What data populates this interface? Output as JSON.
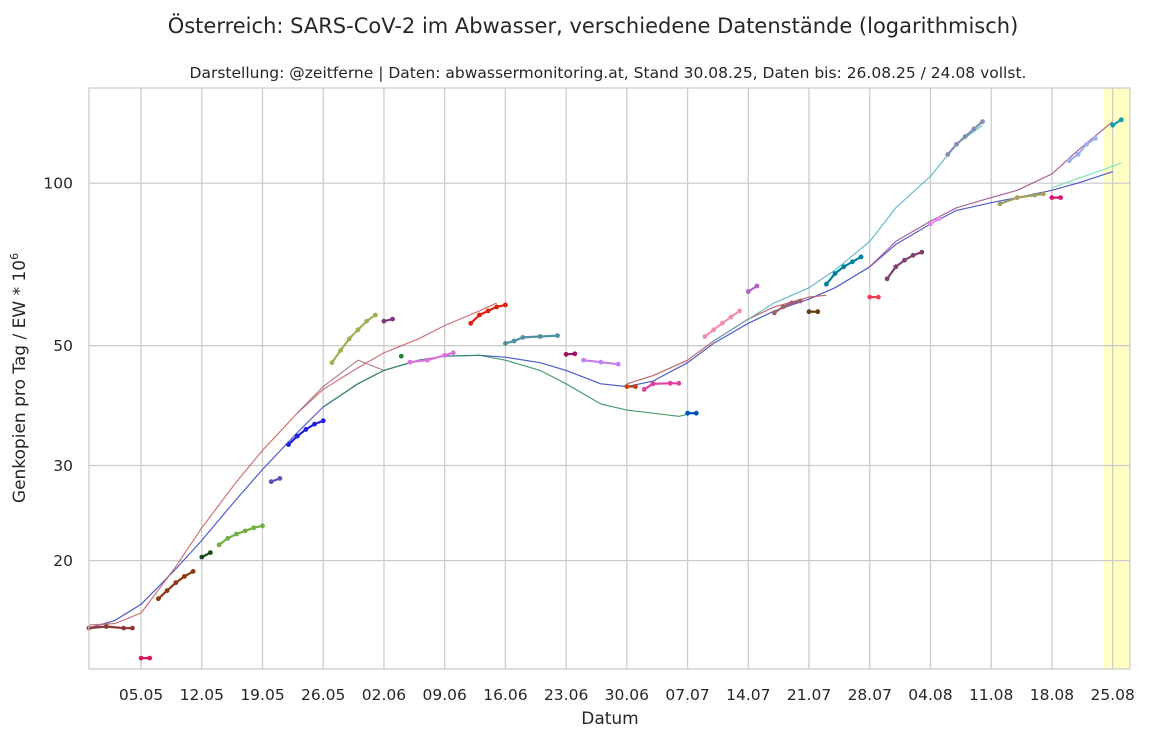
{
  "chart_data": {
    "type": "line",
    "title": "Österreich: SARS-CoV-2 im Abwasser, verschiedene Datenstände (logarithmisch)",
    "subtitle": "Darstellung: @zeitferne | Daten: abwassermonitoring.at, Stand 30.08.25, Daten bis: 26.08.25 / 24.08 vollst.",
    "xlabel": "Datum",
    "ylabel": "Genkopien pro Tag / EW * 10",
    "ylabel_sup": "6",
    "yscale": "log",
    "grid": true,
    "xlim": [
      "2025-04-29",
      "2025-08-27"
    ],
    "ylim": [
      12.6,
      150
    ],
    "x_ticks": [
      {
        "date": "2025-05-05",
        "label": "05.05"
      },
      {
        "date": "2025-05-12",
        "label": "12.05"
      },
      {
        "date": "2025-05-19",
        "label": "19.05"
      },
      {
        "date": "2025-05-26",
        "label": "26.05"
      },
      {
        "date": "2025-06-02",
        "label": "02.06"
      },
      {
        "date": "2025-06-09",
        "label": "09.06"
      },
      {
        "date": "2025-06-16",
        "label": "16.06"
      },
      {
        "date": "2025-06-23",
        "label": "23.06"
      },
      {
        "date": "2025-06-30",
        "label": "30.06"
      },
      {
        "date": "2025-07-07",
        "label": "07.07"
      },
      {
        "date": "2025-07-14",
        "label": "14.07"
      },
      {
        "date": "2025-07-21",
        "label": "21.07"
      },
      {
        "date": "2025-07-28",
        "label": "28.07"
      },
      {
        "date": "2025-08-04",
        "label": "04.08"
      },
      {
        "date": "2025-08-11",
        "label": "11.08"
      },
      {
        "date": "2025-08-18",
        "label": "18.08"
      },
      {
        "date": "2025-08-25",
        "label": "25.08"
      }
    ],
    "y_ticks": [
      {
        "value": 20,
        "label": "20"
      },
      {
        "value": 30,
        "label": "30"
      },
      {
        "value": 50,
        "label": "50"
      },
      {
        "value": 100,
        "label": "100"
      }
    ],
    "highlight_span": {
      "from": "2025-08-24",
      "to": "2025-08-27",
      "color": "#ffffc4"
    },
    "smoothed_curves": [
      {
        "color": "#3040c0",
        "points": [
          [
            "2025-04-29",
            15.0
          ],
          [
            "2025-05-02",
            15.5
          ],
          [
            "2025-05-05",
            16.6
          ],
          [
            "2025-05-09",
            19.3
          ],
          [
            "2025-05-12",
            21.8
          ],
          [
            "2025-05-16",
            26.0
          ],
          [
            "2025-05-19",
            29.5
          ],
          [
            "2025-05-23",
            34.5
          ],
          [
            "2025-05-26",
            38.5
          ],
          [
            "2025-05-30",
            42.5
          ],
          [
            "2025-06-02",
            45.0
          ],
          [
            "2025-06-06",
            47.0
          ],
          [
            "2025-06-09",
            47.8
          ],
          [
            "2025-06-13",
            48.0
          ],
          [
            "2025-06-16",
            47.6
          ],
          [
            "2025-06-20",
            46.5
          ],
          [
            "2025-06-23",
            45.0
          ],
          [
            "2025-06-27",
            42.5
          ],
          [
            "2025-06-30",
            42.0
          ],
          [
            "2025-07-03",
            43.0
          ],
          [
            "2025-07-07",
            46.5
          ],
          [
            "2025-07-10",
            50.5
          ],
          [
            "2025-07-14",
            55.0
          ],
          [
            "2025-07-17",
            58.0
          ],
          [
            "2025-07-21",
            61.0
          ],
          [
            "2025-07-24",
            64.0
          ],
          [
            "2025-07-28",
            70.0
          ],
          [
            "2025-07-31",
            77.0
          ],
          [
            "2025-08-04",
            84.0
          ],
          [
            "2025-08-07",
            89.0
          ],
          [
            "2025-08-11",
            92.0
          ],
          [
            "2025-08-14",
            94.0
          ],
          [
            "2025-08-18",
            97.0
          ],
          [
            "2025-08-21",
            100.0
          ],
          [
            "2025-08-25",
            105.0
          ]
        ]
      },
      {
        "color": "#2e8b57",
        "points": [
          [
            "2025-05-26",
            38.5
          ],
          [
            "2025-05-30",
            42.5
          ],
          [
            "2025-06-02",
            45.0
          ],
          [
            "2025-06-06",
            47.0
          ],
          [
            "2025-06-09",
            47.8
          ],
          [
            "2025-06-13",
            48.0
          ],
          [
            "2025-06-16",
            47.0
          ],
          [
            "2025-06-20",
            45.0
          ],
          [
            "2025-06-23",
            42.5
          ],
          [
            "2025-06-27",
            39.0
          ],
          [
            "2025-06-30",
            38.0
          ],
          [
            "2025-07-03",
            37.5
          ],
          [
            "2025-07-06",
            37.0
          ],
          [
            "2025-07-07",
            37.3
          ]
        ]
      },
      {
        "color": "#c85a5a",
        "points": [
          [
            "2025-04-29",
            15.2
          ],
          [
            "2025-05-02",
            15.3
          ],
          [
            "2025-05-05",
            16.0
          ],
          [
            "2025-05-09",
            19.5
          ],
          [
            "2025-05-12",
            23.0
          ],
          [
            "2025-05-16",
            28.0
          ],
          [
            "2025-05-19",
            32.0
          ],
          [
            "2025-05-23",
            37.5
          ],
          [
            "2025-05-26",
            41.5
          ],
          [
            "2025-05-30",
            45.5
          ],
          [
            "2025-06-02",
            48.5
          ],
          [
            "2025-06-06",
            51.5
          ],
          [
            "2025-06-09",
            54.5
          ],
          [
            "2025-06-13",
            58.0
          ],
          [
            "2025-06-15",
            60.0
          ]
        ]
      },
      {
        "color": "#b05050",
        "points": [
          [
            "2025-06-30",
            42.5
          ],
          [
            "2025-07-03",
            44.0
          ],
          [
            "2025-07-07",
            47.0
          ],
          [
            "2025-07-10",
            51.0
          ],
          [
            "2025-07-14",
            56.0
          ],
          [
            "2025-07-17",
            59.0
          ],
          [
            "2025-07-21",
            61.5
          ],
          [
            "2025-07-23",
            62.0
          ]
        ]
      },
      {
        "color": "#9a4a8a",
        "points": [
          [
            "2025-07-28",
            70.0
          ],
          [
            "2025-07-31",
            78.0
          ],
          [
            "2025-08-04",
            85.0
          ],
          [
            "2025-08-07",
            90.0
          ],
          [
            "2025-08-11",
            94.0
          ],
          [
            "2025-08-14",
            97.0
          ],
          [
            "2025-08-18",
            104.0
          ],
          [
            "2025-08-21",
            115.0
          ],
          [
            "2025-08-25",
            130.0
          ]
        ]
      },
      {
        "color": "#50b0c0",
        "points": [
          [
            "2025-07-10",
            51.0
          ],
          [
            "2025-07-14",
            56.0
          ],
          [
            "2025-07-17",
            60.0
          ],
          [
            "2025-07-21",
            64.0
          ],
          [
            "2025-07-24",
            69.0
          ],
          [
            "2025-07-28",
            78.0
          ],
          [
            "2025-07-31",
            90.0
          ],
          [
            "2025-08-04",
            103.0
          ],
          [
            "2025-08-07",
            118.0
          ],
          [
            "2025-08-10",
            128.0
          ]
        ]
      },
      {
        "color": "#70e0b0",
        "points": [
          [
            "2025-08-18",
            98.0
          ],
          [
            "2025-08-21",
            102.0
          ],
          [
            "2025-08-24",
            106.0
          ],
          [
            "2025-08-26",
            109.0
          ]
        ]
      },
      {
        "color": "#a07080",
        "points": [
          [
            "2025-05-23",
            37.5
          ],
          [
            "2025-05-26",
            42.0
          ],
          [
            "2025-05-30",
            47.0
          ],
          [
            "2025-06-02",
            45.0
          ]
        ]
      }
    ],
    "snapshot_series": [
      {
        "color": "#8b3a3a",
        "points": [
          [
            "2025-04-29",
            15.0
          ],
          [
            "2025-05-01",
            15.1
          ],
          [
            "2025-05-03",
            15.0
          ],
          [
            "2025-05-04",
            15.0
          ]
        ]
      },
      {
        "color": "#e0115f",
        "points": [
          [
            "2025-05-05",
            13.2
          ],
          [
            "2025-05-06",
            13.2
          ]
        ]
      },
      {
        "color": "#8b3a10",
        "points": [
          [
            "2025-05-07",
            17.0
          ],
          [
            "2025-05-08",
            17.6
          ],
          [
            "2025-05-09",
            18.2
          ],
          [
            "2025-05-10",
            18.7
          ],
          [
            "2025-05-11",
            19.1
          ]
        ]
      },
      {
        "color": "#1a4a1a",
        "points": [
          [
            "2025-05-12",
            20.3
          ],
          [
            "2025-05-13",
            20.7
          ]
        ]
      },
      {
        "color": "#70b040",
        "points": [
          [
            "2025-05-14",
            21.4
          ],
          [
            "2025-05-15",
            22.0
          ],
          [
            "2025-05-16",
            22.4
          ],
          [
            "2025-05-17",
            22.7
          ],
          [
            "2025-05-18",
            23.0
          ],
          [
            "2025-05-19",
            23.2
          ]
        ]
      },
      {
        "color": "#6050c0",
        "points": [
          [
            "2025-05-20",
            28.0
          ],
          [
            "2025-05-21",
            28.4
          ]
        ]
      },
      {
        "color": "#2020e0",
        "points": [
          [
            "2025-05-22",
            32.8
          ],
          [
            "2025-05-23",
            34.0
          ],
          [
            "2025-05-24",
            35.0
          ],
          [
            "2025-05-25",
            35.8
          ],
          [
            "2025-05-26",
            36.3
          ]
        ]
      },
      {
        "color": "#a0b050",
        "points": [
          [
            "2025-05-27",
            46.5
          ],
          [
            "2025-05-28",
            49.0
          ],
          [
            "2025-05-29",
            51.5
          ],
          [
            "2025-05-30",
            53.5
          ],
          [
            "2025-05-31",
            55.5
          ],
          [
            "2025-06-01",
            57.0
          ]
        ]
      },
      {
        "color": "#7a3a7a",
        "points": [
          [
            "2025-06-02",
            55.5
          ],
          [
            "2025-06-03",
            56.0
          ]
        ]
      },
      {
        "color": "#208040",
        "points": [
          [
            "2025-06-04",
            47.8
          ]
        ]
      },
      {
        "color": "#e070e0",
        "points": [
          [
            "2025-06-05",
            46.6
          ],
          [
            "2025-06-07",
            47.0
          ],
          [
            "2025-06-09",
            48.0
          ],
          [
            "2025-06-10",
            48.5
          ]
        ]
      },
      {
        "color": "#e02010",
        "points": [
          [
            "2025-06-12",
            55.0
          ],
          [
            "2025-06-13",
            57.0
          ],
          [
            "2025-06-14",
            58.0
          ],
          [
            "2025-06-15",
            59.0
          ],
          [
            "2025-06-16",
            59.5
          ]
        ]
      },
      {
        "color": "#5090a0",
        "points": [
          [
            "2025-06-16",
            50.5
          ],
          [
            "2025-06-17",
            51.0
          ],
          [
            "2025-06-18",
            51.8
          ],
          [
            "2025-06-20",
            52.0
          ],
          [
            "2025-06-22",
            52.2
          ]
        ]
      },
      {
        "color": "#a01060",
        "points": [
          [
            "2025-06-23",
            48.2
          ],
          [
            "2025-06-24",
            48.3
          ]
        ]
      },
      {
        "color": "#c080f0",
        "points": [
          [
            "2025-06-25",
            47.0
          ],
          [
            "2025-06-27",
            46.6
          ],
          [
            "2025-06-29",
            46.2
          ]
        ]
      },
      {
        "color": "#c04010",
        "points": [
          [
            "2025-06-30",
            42.0
          ],
          [
            "2025-07-01",
            42.0
          ]
        ]
      },
      {
        "color": "#e040a0",
        "points": [
          [
            "2025-07-02",
            41.5
          ],
          [
            "2025-07-03",
            42.5
          ],
          [
            "2025-07-05",
            42.6
          ],
          [
            "2025-07-06",
            42.6
          ]
        ]
      },
      {
        "color": "#0050c0",
        "points": [
          [
            "2025-07-07",
            37.5
          ],
          [
            "2025-07-08",
            37.5
          ]
        ]
      },
      {
        "color": "#f090b0",
        "points": [
          [
            "2025-07-09",
            52.0
          ],
          [
            "2025-07-10",
            53.5
          ],
          [
            "2025-07-11",
            55.0
          ],
          [
            "2025-07-12",
            56.5
          ],
          [
            "2025-07-13",
            58.0
          ]
        ]
      },
      {
        "color": "#b060c0",
        "points": [
          [
            "2025-07-14",
            63.0
          ],
          [
            "2025-07-15",
            64.5
          ]
        ]
      },
      {
        "color": "#a06070",
        "points": [
          [
            "2025-07-17",
            57.5
          ],
          [
            "2025-07-18",
            59.0
          ],
          [
            "2025-07-19",
            60.0
          ],
          [
            "2025-07-20",
            60.5
          ]
        ]
      },
      {
        "color": "#604010",
        "points": [
          [
            "2025-07-21",
            57.8
          ],
          [
            "2025-07-22",
            57.8
          ]
        ]
      },
      {
        "color": "#0080a0",
        "points": [
          [
            "2025-07-23",
            65.0
          ],
          [
            "2025-07-24",
            68.0
          ],
          [
            "2025-07-25",
            70.0
          ],
          [
            "2025-07-26",
            71.5
          ],
          [
            "2025-07-27",
            73.0
          ]
        ]
      },
      {
        "color": "#f04050",
        "points": [
          [
            "2025-07-28",
            61.5
          ],
          [
            "2025-07-29",
            61.5
          ]
        ]
      },
      {
        "color": "#804070",
        "points": [
          [
            "2025-07-30",
            66.5
          ],
          [
            "2025-07-31",
            70.0
          ],
          [
            "2025-08-01",
            72.0
          ],
          [
            "2025-08-02",
            73.5
          ],
          [
            "2025-08-03",
            74.5
          ]
        ]
      },
      {
        "color": "#e090f0",
        "points": [
          [
            "2025-08-04",
            84.0
          ],
          [
            "2025-08-05",
            86.0
          ]
        ]
      },
      {
        "color": "#8090b0",
        "points": [
          [
            "2025-08-06",
            113.0
          ],
          [
            "2025-08-07",
            118.0
          ],
          [
            "2025-08-08",
            122.0
          ],
          [
            "2025-08-09",
            126.0
          ],
          [
            "2025-08-10",
            130.0
          ]
        ]
      },
      {
        "color": "#a0a060",
        "points": [
          [
            "2025-08-12",
            91.5
          ],
          [
            "2025-08-14",
            94.0
          ],
          [
            "2025-08-16",
            95.0
          ],
          [
            "2025-08-17",
            95.5
          ]
        ]
      },
      {
        "color": "#e0106a",
        "points": [
          [
            "2025-08-18",
            94.0
          ],
          [
            "2025-08-19",
            94.0
          ]
        ]
      },
      {
        "color": "#a0b0f0",
        "points": [
          [
            "2025-08-20",
            110.0
          ],
          [
            "2025-08-21",
            113.0
          ],
          [
            "2025-08-22",
            118.0
          ],
          [
            "2025-08-23",
            121.0
          ]
        ]
      },
      {
        "color": "#10a0b0",
        "points": [
          [
            "2025-08-25",
            128.0
          ],
          [
            "2025-08-26",
            131.0
          ]
        ]
      }
    ]
  }
}
